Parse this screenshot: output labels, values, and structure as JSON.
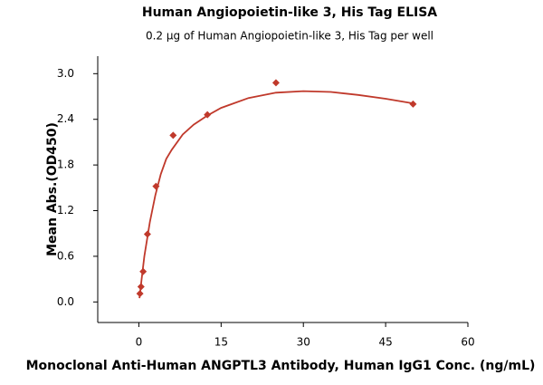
{
  "chart_data": {
    "type": "scatter",
    "title": "Human Angiopoietin-like 3, His Tag ELISA",
    "subtitle": "0.2 μg of Human Angiopoietin-like 3, His Tag per well",
    "x_label": "Monoclonal Anti-Human ANGPTL3 Antibody, Human IgG1 Conc. (ng/mL)",
    "y_label": "Mean Abs.(OD450)",
    "xlim": [
      -7.5,
      60
    ],
    "ylim": [
      -0.27,
      3.23
    ],
    "xticks": [
      0,
      15,
      30,
      45,
      60
    ],
    "yticks": [
      {
        "value": 0,
        "label": "0.0"
      },
      0.6,
      1.2,
      1.8,
      2.4,
      {
        "value": 3,
        "label": "3.0"
      }
    ],
    "series": [
      {
        "type": "scatter",
        "color": "#c0392b",
        "x": [
          0.195,
          0.39,
          0.78,
          1.56,
          3.125,
          6.25,
          12.5,
          25,
          50
        ],
        "values": [
          0.11,
          0.2,
          0.4,
          0.89,
          1.52,
          2.19,
          2.46,
          2.88,
          2.6
        ]
      },
      {
        "type": "line",
        "color": "#c0392b",
        "x": [
          0.1,
          0.5,
          1,
          2,
          3,
          4,
          5,
          6,
          8,
          10,
          12.5,
          15,
          20,
          25,
          30,
          35,
          40,
          45,
          50
        ],
        "values": [
          0.05,
          0.3,
          0.6,
          1.05,
          1.4,
          1.68,
          1.88,
          2.0,
          2.2,
          2.33,
          2.45,
          2.55,
          2.68,
          2.75,
          2.77,
          2.76,
          2.72,
          2.67,
          2.61
        ]
      }
    ]
  }
}
